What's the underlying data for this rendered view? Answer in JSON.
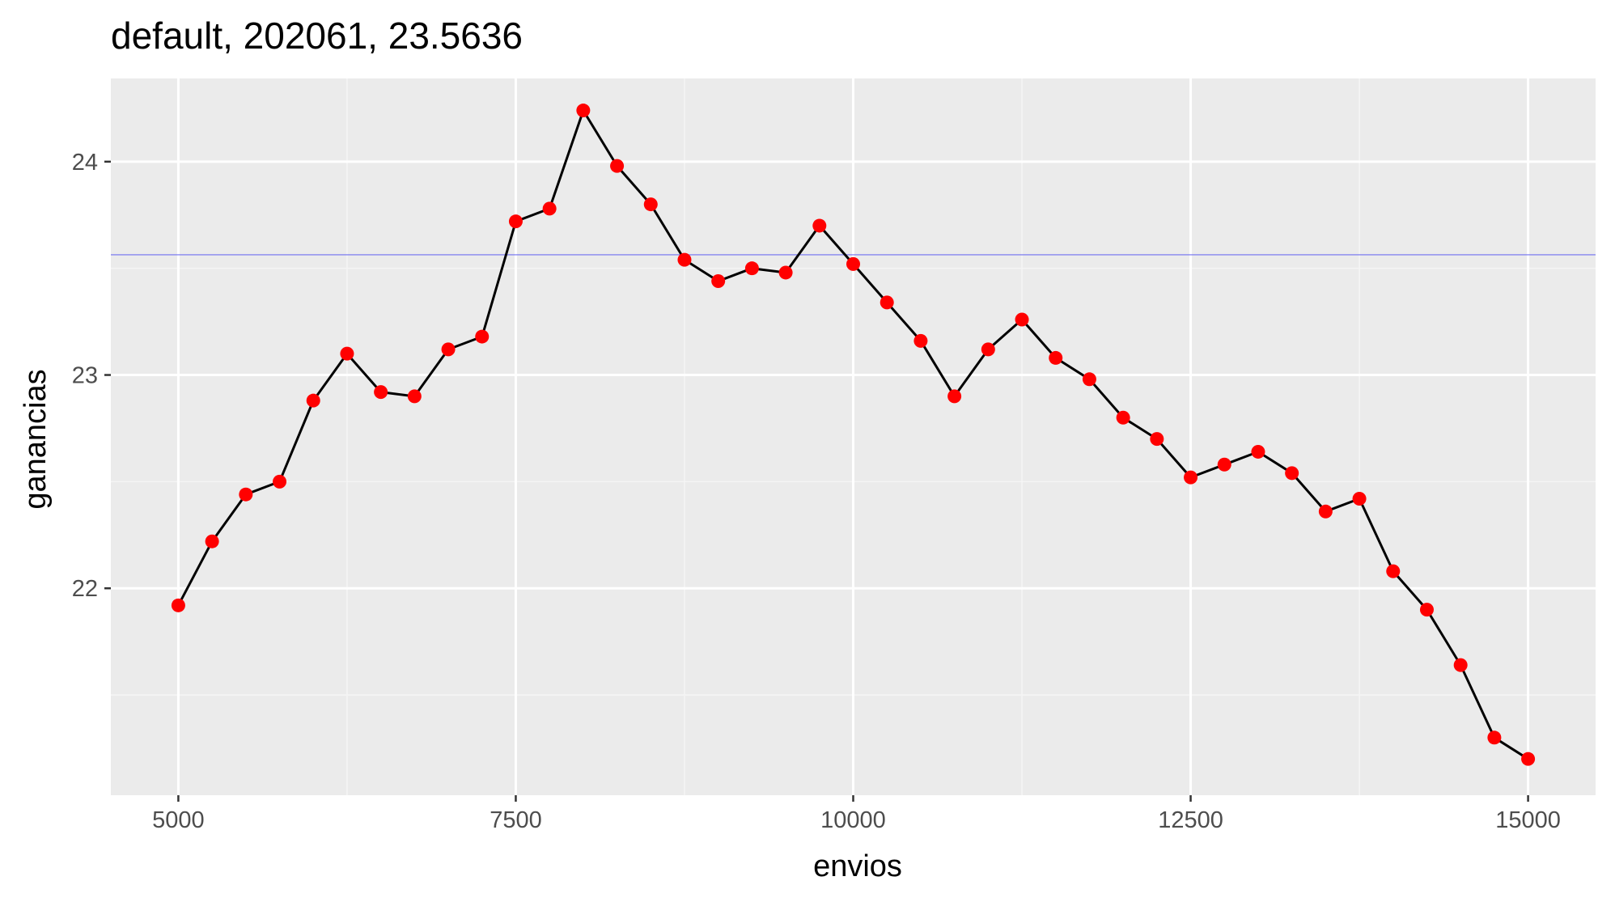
{
  "chart_data": {
    "type": "line",
    "title": "default, 202061, 23.5636",
    "xlabel": "envios",
    "ylabel": "ganancias",
    "xlim": [
      4500,
      15500
    ],
    "ylim": [
      21.03,
      24.39
    ],
    "x_ticks": [
      5000,
      7500,
      10000,
      12500,
      15000
    ],
    "x_tick_labels": [
      "5000",
      "7500",
      "10000",
      "12500",
      "15000"
    ],
    "y_ticks": [
      22,
      23,
      24
    ],
    "y_tick_labels": [
      "22",
      "23",
      "24"
    ],
    "grid": true,
    "legend": "none",
    "series": [
      {
        "line_color": "#000000",
        "point_color": "#ff0000",
        "x": [
          5000,
          5250,
          5500,
          5750,
          6000,
          6250,
          6500,
          6750,
          7000,
          7250,
          7500,
          7750,
          8000,
          8250,
          8500,
          8750,
          9000,
          9250,
          9500,
          9750,
          10000,
          10250,
          10500,
          10750,
          11000,
          11250,
          11500,
          11750,
          12000,
          12250,
          12500,
          12750,
          13000,
          13250,
          13500,
          13750,
          14000,
          14250,
          14500,
          14750,
          15000
        ],
        "y": [
          21.92,
          22.22,
          22.44,
          22.5,
          22.88,
          23.1,
          22.92,
          22.9,
          23.12,
          23.18,
          23.72,
          23.78,
          24.24,
          23.98,
          23.8,
          23.54,
          23.44,
          23.5,
          23.48,
          23.7,
          23.52,
          23.34,
          23.16,
          22.9,
          23.12,
          23.26,
          23.08,
          22.98,
          22.8,
          22.7,
          22.52,
          22.58,
          22.64,
          22.54,
          22.36,
          22.42,
          22.08,
          21.9,
          21.64,
          21.3,
          21.2
        ]
      }
    ],
    "hline": {
      "y": 23.5636,
      "color": "#6f6ff0"
    },
    "colors": {
      "panel": "#ebebeb",
      "grid_major": "#ffffff",
      "grid_minor": "#f5f5f5"
    }
  }
}
